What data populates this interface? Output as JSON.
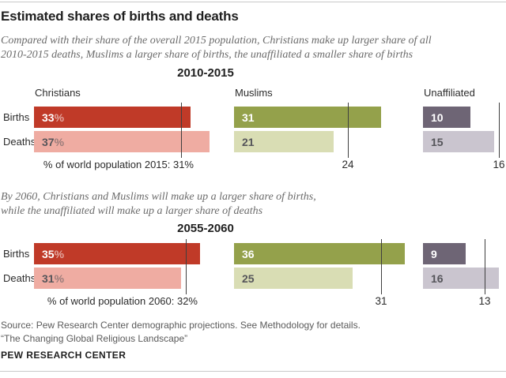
{
  "header": {
    "title": "Estimated shares of births and deaths",
    "subtitle_line1": "Compared with their share of the overall 2015 population, Christians make up larger share of all",
    "subtitle_line2": "2010-2015 deaths, Muslims a larger share of births, the unaffiliated a smaller share of births"
  },
  "annotation": {
    "line1": "By 2060, Christians and Muslims will make up a larger share of births,",
    "line2": "while the unaffiliated will make up a larger share of deaths"
  },
  "colors": {
    "christians_dark": "#c03a28",
    "christians_light": "#efaca2",
    "muslims_dark": "#94a14b",
    "muslims_light": "#d9ddb4",
    "unaffiliated_dark": "#6e6575",
    "unaffiliated_light": "#cac5cf",
    "reference_line": "#3f3f3f"
  },
  "chart_data": [
    {
      "type": "bar",
      "title": "2010-2015",
      "orientation": "horizontal",
      "categories": [
        "Births",
        "Deaths"
      ],
      "unit": "% of world total",
      "xlim": [
        0,
        37
      ],
      "grid": false,
      "groups": [
        {
          "name": "Christians",
          "births": 33,
          "births_suffix": "%",
          "deaths": 37,
          "deaths_suffix": "%",
          "reference": 31,
          "reference_label": "% of world population 2015: 31%",
          "births_color": "#c03a28",
          "deaths_color": "#efaca2"
        },
        {
          "name": "Muslims",
          "births": 31,
          "births_suffix": "",
          "deaths": 21,
          "deaths_suffix": "",
          "reference": 24,
          "reference_label": "24",
          "births_color": "#94a14b",
          "deaths_color": "#d9ddb4"
        },
        {
          "name": "Unaffiliated",
          "births": 10,
          "births_suffix": "",
          "deaths": 15,
          "deaths_suffix": "",
          "reference": 16,
          "reference_label": "16",
          "births_color": "#6e6575",
          "deaths_color": "#cac5cf"
        }
      ]
    },
    {
      "type": "bar",
      "title": "2055-2060",
      "orientation": "horizontal",
      "categories": [
        "Births",
        "Deaths"
      ],
      "unit": "% of world total",
      "xlim": [
        0,
        36
      ],
      "grid": false,
      "groups": [
        {
          "name": "Christians",
          "births": 35,
          "births_suffix": "%",
          "deaths": 31,
          "deaths_suffix": "%",
          "reference": 32,
          "reference_label": "% of world population 2060: 32%",
          "births_color": "#c03a28",
          "deaths_color": "#efaca2"
        },
        {
          "name": "Muslims",
          "births": 36,
          "births_suffix": "",
          "deaths": 25,
          "deaths_suffix": "",
          "reference": 31,
          "reference_label": "31",
          "births_color": "#94a14b",
          "deaths_color": "#d9ddb4"
        },
        {
          "name": "Unaffiliated",
          "births": 9,
          "births_suffix": "",
          "deaths": 16,
          "deaths_suffix": "",
          "reference": 13,
          "reference_label": "13",
          "births_color": "#6e6575",
          "deaths_color": "#cac5cf"
        }
      ]
    }
  ],
  "footer": {
    "source_line1": "Source: Pew Research Center demographic projections. See Methodology for details.",
    "source_line2": "“The Changing Global Religious Landscape”",
    "brand": "PEW RESEARCH CENTER"
  }
}
